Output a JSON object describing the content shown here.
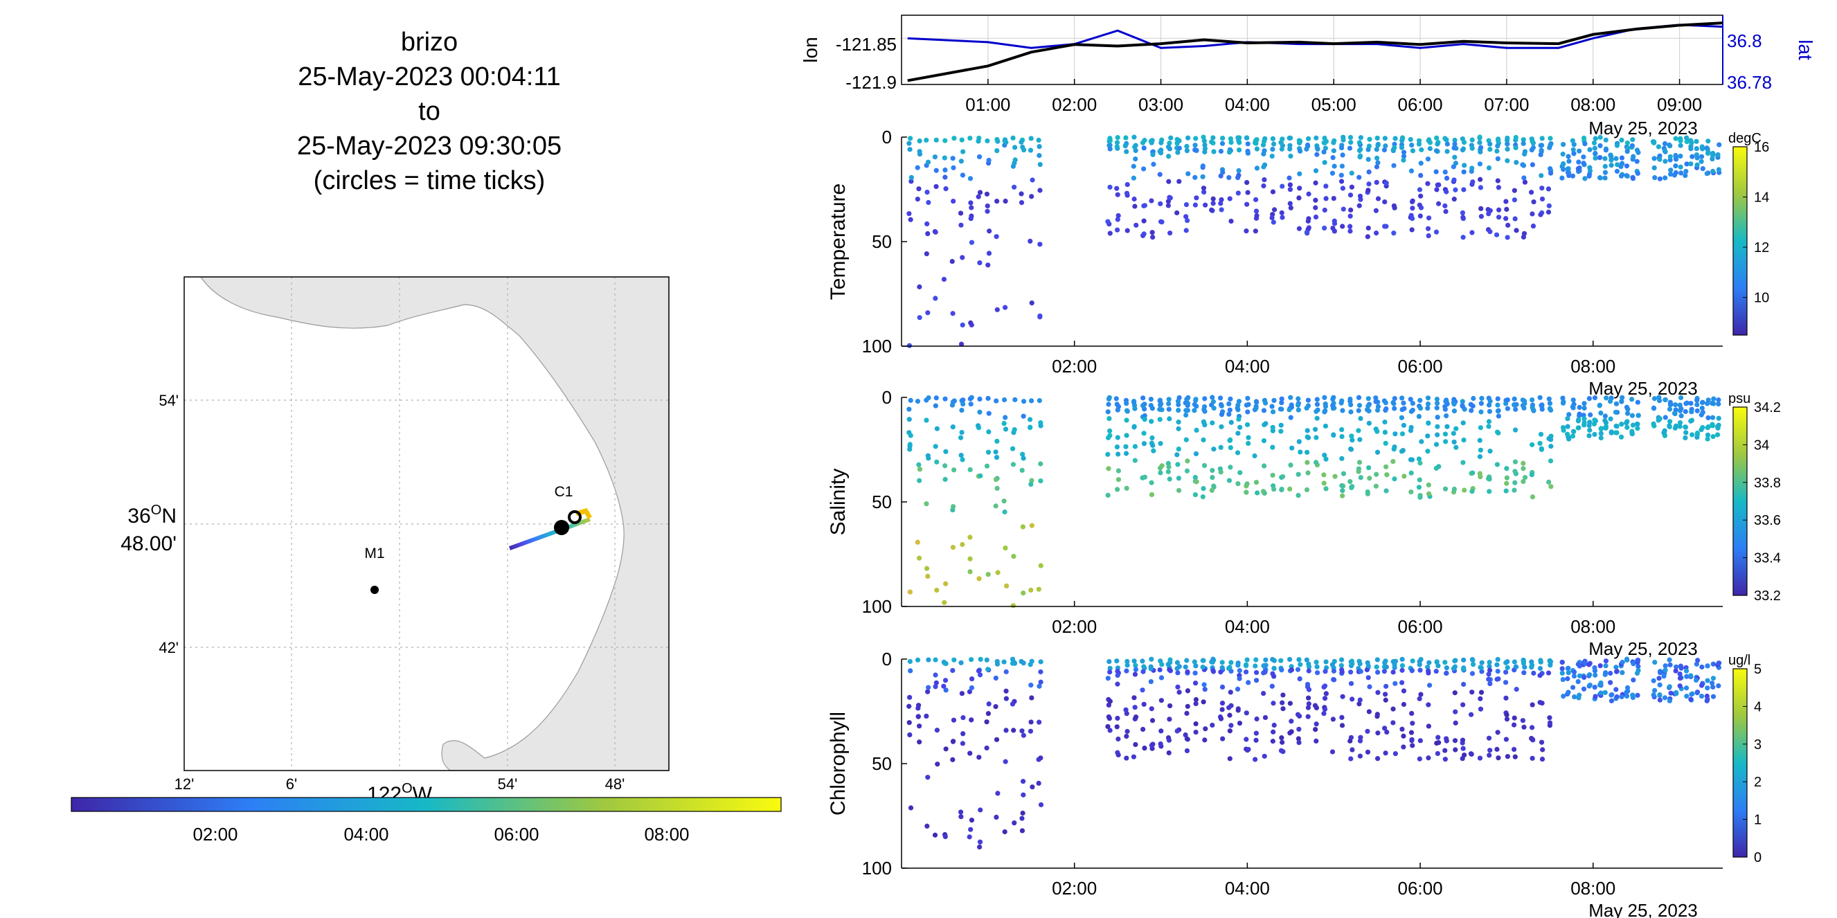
{
  "header": {
    "lines": [
      "brizo",
      "25-May-2023 00:04:11",
      "to",
      "25-May-2023 09:30:05",
      "(circles = time ticks)"
    ]
  },
  "map": {
    "lat_ticks": [
      "54'",
      "42'"
    ],
    "lat_center_label_deg": "36",
    "lat_center_label_min": "48.00'",
    "lon_ticks": [
      "12'",
      "6'",
      "54'",
      "48'"
    ],
    "lon_center_label": "122",
    "lon_center_suffix": "W",
    "stations": [
      {
        "name": "C1"
      },
      {
        "name": "M1"
      }
    ],
    "time_colorbar_ticks": [
      "02:00",
      "04:00",
      "06:00",
      "08:00"
    ],
    "land_color": "#e6e6e6"
  },
  "chart_data": [
    {
      "type": "line",
      "name": "position",
      "ylabel_left": "lon",
      "ylabel_right": "lat",
      "yticks_left": [
        "-121.85",
        "-121.9"
      ],
      "yticks_right": [
        "36.8",
        "36.78"
      ],
      "xticks": [
        "01:00",
        "02:00",
        "03:00",
        "04:00",
        "05:00",
        "06:00",
        "07:00",
        "08:00",
        "09:00"
      ],
      "date_label": "May 25, 2023",
      "x_hours": [
        0.07,
        1.0,
        1.5,
        2.0,
        2.5,
        3.0,
        3.5,
        4.0,
        4.6,
        5.0,
        5.5,
        6.0,
        6.5,
        7.0,
        7.6,
        8.0,
        8.5,
        9.0,
        9.5
      ],
      "lon": [
        -121.905,
        -121.886,
        -121.868,
        -121.858,
        -121.86,
        -121.857,
        -121.852,
        -121.856,
        -121.855,
        -121.857,
        -121.855,
        -121.858,
        -121.854,
        -121.856,
        -121.857,
        -121.845,
        -121.838,
        -121.833,
        -121.83
      ],
      "lat": [
        36.8,
        36.798,
        36.795,
        36.797,
        36.804,
        36.795,
        36.796,
        36.798,
        36.797,
        36.797,
        36.797,
        36.795,
        36.797,
        36.795,
        36.795,
        36.8,
        36.805,
        36.807,
        36.806
      ],
      "lon_color": "#000000",
      "lat_color": "#0000cc"
    },
    {
      "type": "scatter",
      "name": "temperature",
      "ylabel": "Temperature",
      "units": "degC",
      "ylim": [
        0,
        100
      ],
      "yticks": [
        "0",
        "50",
        "100"
      ],
      "xticks": [
        "02:00",
        "04:00",
        "06:00",
        "08:00"
      ],
      "date_label": "May 25, 2023",
      "clim": [
        8.5,
        16
      ],
      "cticks": [
        "16",
        "14",
        "12",
        "10"
      ]
    },
    {
      "type": "scatter",
      "name": "salinity",
      "ylabel": "Salinity",
      "units": "psu",
      "ylim": [
        0,
        100
      ],
      "yticks": [
        "0",
        "50",
        "100"
      ],
      "xticks": [
        "02:00",
        "04:00",
        "06:00",
        "08:00"
      ],
      "date_label": "May 25, 2023",
      "clim": [
        33.2,
        34.2
      ],
      "cticks": [
        "34.2",
        "34",
        "33.8",
        "33.6",
        "33.4",
        "33.2"
      ]
    },
    {
      "type": "scatter",
      "name": "chlorophyll",
      "ylabel": "Chlorophyll",
      "units": "ug/l",
      "ylim": [
        0,
        100
      ],
      "yticks": [
        "0",
        "50",
        "100"
      ],
      "xticks": [
        "02:00",
        "04:00",
        "06:00",
        "08:00"
      ],
      "date_label": "May 25, 2023",
      "clim": [
        0,
        5
      ],
      "cticks": [
        "5",
        "4",
        "3",
        "2",
        "1",
        "0"
      ]
    }
  ]
}
